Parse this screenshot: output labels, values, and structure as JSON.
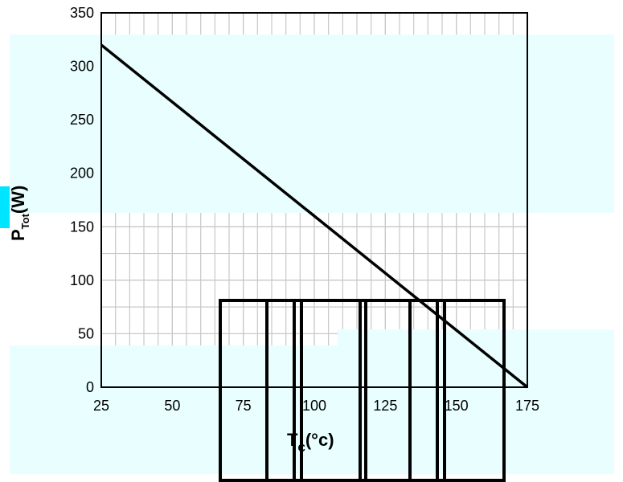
{
  "chart_data": {
    "type": "line",
    "x": [
      25,
      175
    ],
    "series": [
      {
        "values": [
          320,
          0
        ],
        "color": "#000000"
      }
    ],
    "xlabel": {
      "main": "T",
      "sub": "C",
      "unit": "(°c)"
    },
    "ylabel": {
      "main": "P",
      "sub": "Tot",
      "unit": "(W)"
    },
    "xlim": [
      25,
      175
    ],
    "ylim": [
      0,
      350
    ],
    "xticks": [
      25,
      50,
      75,
      100,
      125,
      150,
      175
    ],
    "yticks": [
      0,
      50,
      100,
      150,
      200,
      250,
      300,
      350
    ],
    "grid": true,
    "colors": {
      "overlay": "#e9ffff",
      "highlight": "#00e5ff",
      "box": "#000000"
    }
  }
}
